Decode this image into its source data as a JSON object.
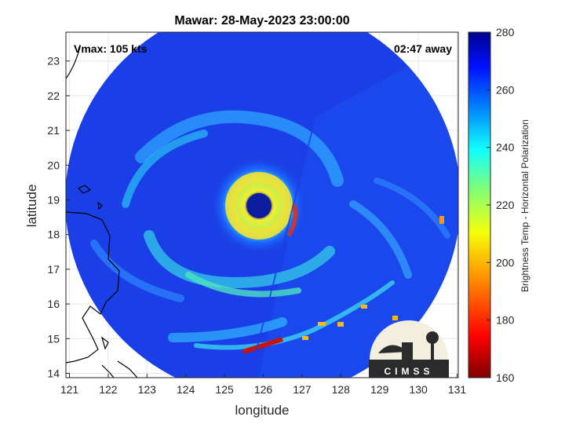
{
  "title": "Mawar: 28-May-2023 23:00:00",
  "vmax_text": "Vmax: 105 kts",
  "time_away_text": "02:47 away",
  "x_axis": {
    "label": "longitude",
    "ticks": [
      "121",
      "122",
      "123",
      "124",
      "125",
      "126",
      "127",
      "128",
      "129",
      "130",
      "131"
    ]
  },
  "y_axis": {
    "label": "latitude",
    "ticks": [
      "14",
      "15",
      "16",
      "17",
      "18",
      "19",
      "20",
      "21",
      "22",
      "23"
    ]
  },
  "colorbar": {
    "label": "Brightness Temp - Horizontal Polarization",
    "ticks": [
      "160",
      "180",
      "200",
      "220",
      "240",
      "260",
      "280"
    ],
    "range": [
      160,
      280
    ]
  },
  "logo": {
    "text": "CIMSS"
  },
  "colors": {
    "background_scene": "#1a3fe6",
    "eye": "#0a1a9a",
    "eyewall": "#f2e02a",
    "accent_red": "#d21a0a"
  }
}
